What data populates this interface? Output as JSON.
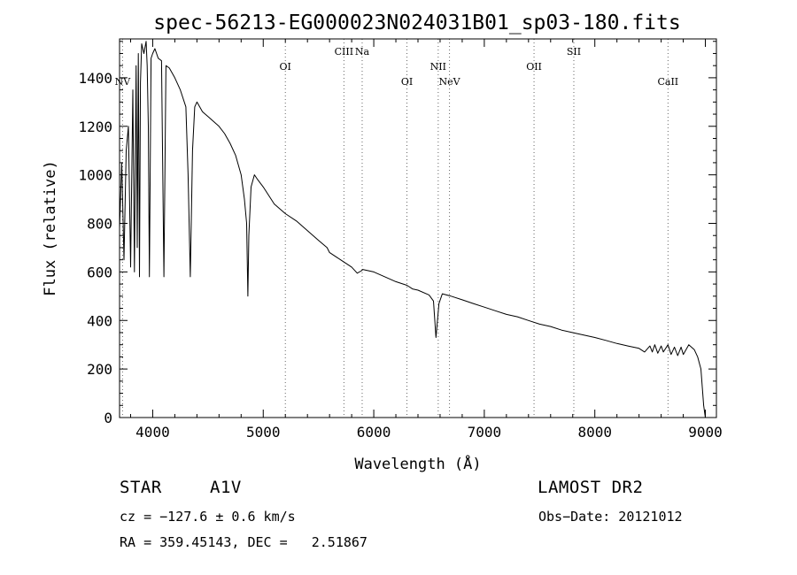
{
  "chart_data": {
    "type": "line",
    "title": "spec-56213-EG000023N024031B01_sp03-180.fits",
    "xlabel": "Wavelength (Å)",
    "ylabel": "Flux (relative)",
    "xlim": [
      3700,
      9100
    ],
    "ylim": [
      0,
      1560
    ],
    "xticks": [
      4000,
      5000,
      6000,
      7000,
      8000,
      9000
    ],
    "yticks": [
      0,
      200,
      400,
      600,
      800,
      1000,
      1200,
      1400
    ],
    "series": [
      {
        "name": "spectrum",
        "x": [
          3700,
          3720,
          3740,
          3760,
          3780,
          3800,
          3820,
          3835,
          3850,
          3860,
          3870,
          3880,
          3889,
          3900,
          3920,
          3940,
          3950,
          3960,
          3970,
          3985,
          4000,
          4020,
          4050,
          4080,
          4101,
          4120,
          4150,
          4200,
          4250,
          4300,
          4320,
          4340,
          4360,
          4380,
          4400,
          4450,
          4500,
          4550,
          4600,
          4650,
          4700,
          4750,
          4800,
          4830,
          4850,
          4861,
          4870,
          4890,
          4920,
          4950,
          5000,
          5100,
          5200,
          5300,
          5400,
          5500,
          5577,
          5600,
          5700,
          5800,
          5850,
          5890,
          5900,
          6000,
          6100,
          6200,
          6300,
          6350,
          6400,
          6500,
          6540,
          6563,
          6590,
          6620,
          6700,
          6800,
          6900,
          7000,
          7100,
          7200,
          7300,
          7400,
          7500,
          7600,
          7700,
          7800,
          7900,
          8000,
          8100,
          8200,
          8300,
          8400,
          8450,
          8498,
          8520,
          8542,
          8570,
          8600,
          8620,
          8662,
          8690,
          8720,
          8750,
          8780,
          8800,
          8850,
          8900,
          8930,
          8960,
          8985,
          9000
        ],
        "y": [
          780,
          1050,
          650,
          1100,
          1200,
          620,
          1350,
          600,
          1450,
          700,
          1500,
          580,
          1380,
          1540,
          1500,
          1550,
          1450,
          1200,
          580,
          1480,
          1500,
          1520,
          1480,
          1470,
          580,
          1450,
          1440,
          1400,
          1350,
          1280,
          1000,
          580,
          1100,
          1280,
          1300,
          1260,
          1240,
          1220,
          1200,
          1170,
          1130,
          1080,
          1000,
          900,
          800,
          500,
          750,
          950,
          1000,
          980,
          950,
          880,
          840,
          810,
          770,
          730,
          700,
          680,
          650,
          620,
          595,
          605,
          610,
          600,
          580,
          560,
          545,
          530,
          525,
          505,
          480,
          330,
          470,
          510,
          500,
          485,
          470,
          455,
          440,
          425,
          415,
          400,
          385,
          375,
          360,
          350,
          340,
          330,
          318,
          305,
          295,
          285,
          270,
          295,
          270,
          300,
          265,
          295,
          270,
          300,
          260,
          290,
          255,
          290,
          260,
          300,
          280,
          250,
          200,
          50,
          0
        ]
      }
    ],
    "lines": [
      {
        "label": "NV",
        "wavelength": 3727,
        "row": "low"
      },
      {
        "label": "OI",
        "wavelength": 5200,
        "row": "high"
      },
      {
        "label": "CIII",
        "wavelength": 5730,
        "row": "top"
      },
      {
        "label": "Na",
        "wavelength": 5895,
        "row": "top"
      },
      {
        "label": "OI",
        "wavelength": 6300,
        "row": "low"
      },
      {
        "label": "NII",
        "wavelength": 6583,
        "row": "high"
      },
      {
        "label": "NeV",
        "wavelength": 6685,
        "row": "low"
      },
      {
        "label": "OII",
        "wavelength": 7450,
        "row": "high"
      },
      {
        "label": "SII",
        "wavelength": 7810,
        "row": "top"
      },
      {
        "label": "CaII",
        "wavelength": 8662,
        "row": "low"
      }
    ]
  },
  "info": {
    "object_class": "STAR",
    "subclass": "A1V",
    "survey": "LAMOST DR2",
    "cz": "cz = −127.6 ± 0.6 km/s",
    "obs_date": "Obs−Date: 20121012",
    "coords": "RA = 359.45143, DEC =   2.51867"
  }
}
